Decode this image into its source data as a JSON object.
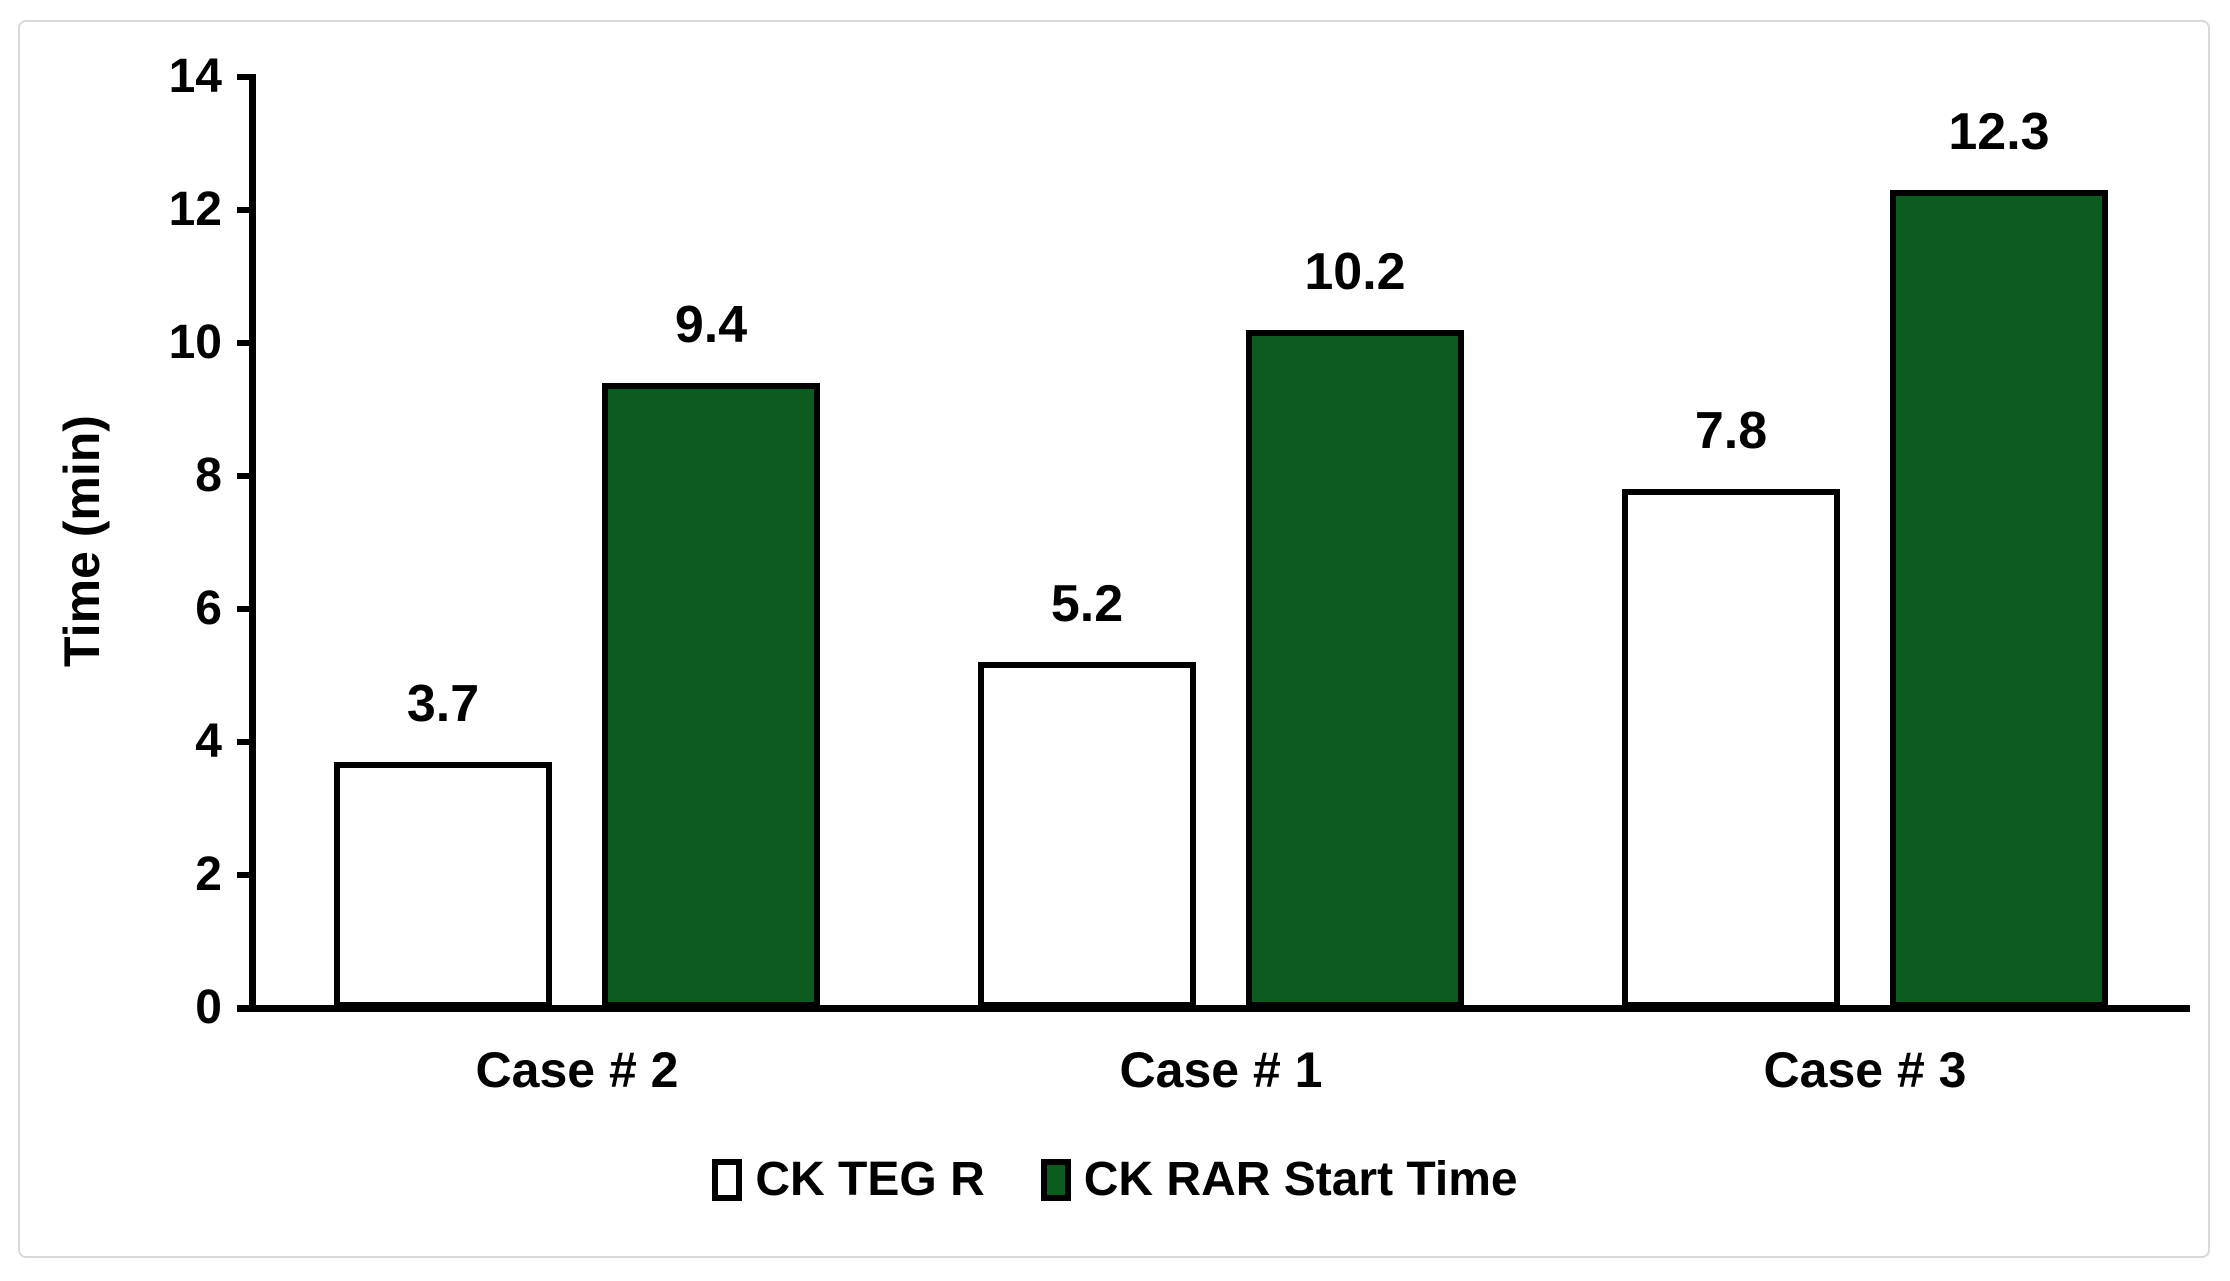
{
  "chart_data": {
    "type": "bar",
    "title": "",
    "xlabel": "",
    "ylabel": "Time (min)",
    "categories": [
      "Case # 2",
      "Case # 1",
      "Case # 3"
    ],
    "series": [
      {
        "name": "CK TEG R",
        "fill": "#ffffff",
        "values": [
          3.7,
          5.2,
          7.8
        ]
      },
      {
        "name": "CK RAR Start Time",
        "fill": "#0b5a1e",
        "values": [
          9.4,
          10.2,
          12.3
        ]
      }
    ],
    "ylim": [
      0,
      14
    ],
    "yticks": [
      0,
      2,
      4,
      6,
      8,
      10,
      12,
      14
    ],
    "grid": false,
    "legend_position": "bottom-center",
    "colors": {
      "bar_border": "#000000",
      "axis": "#000000",
      "text": "#000000",
      "frame_border": "#d9d9d9",
      "background": "#ffffff"
    }
  }
}
